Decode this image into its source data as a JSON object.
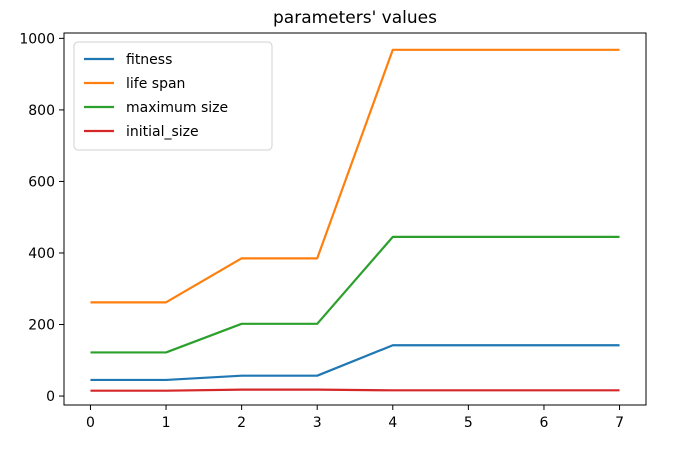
{
  "chart_data": {
    "type": "line",
    "title": "parameters' values",
    "xlabel": "",
    "ylabel": "",
    "x": [
      0,
      1,
      2,
      3,
      4,
      5,
      6,
      7
    ],
    "xticks": [
      0,
      1,
      2,
      3,
      4,
      5,
      6,
      7
    ],
    "yticks": [
      0,
      200,
      400,
      600,
      800,
      1000
    ],
    "xlim": [
      -0.35,
      7.35
    ],
    "ylim": [
      -25,
      1015
    ],
    "grid": false,
    "legend_position": "upper-left",
    "series": [
      {
        "name": "fitness",
        "color": "#1f77b4",
        "values": [
          45,
          45,
          57,
          57,
          142,
          142,
          142,
          142
        ]
      },
      {
        "name": "life span",
        "color": "#ff7f0e",
        "values": [
          262,
          262,
          385,
          385,
          968,
          968,
          968,
          968
        ]
      },
      {
        "name": "maximum size",
        "color": "#2ca02c",
        "values": [
          122,
          122,
          202,
          202,
          445,
          445,
          445,
          445
        ]
      },
      {
        "name": "initial_size",
        "color": "#d62728",
        "values": [
          15,
          15,
          18,
          18,
          16,
          16,
          16,
          16
        ]
      }
    ]
  }
}
